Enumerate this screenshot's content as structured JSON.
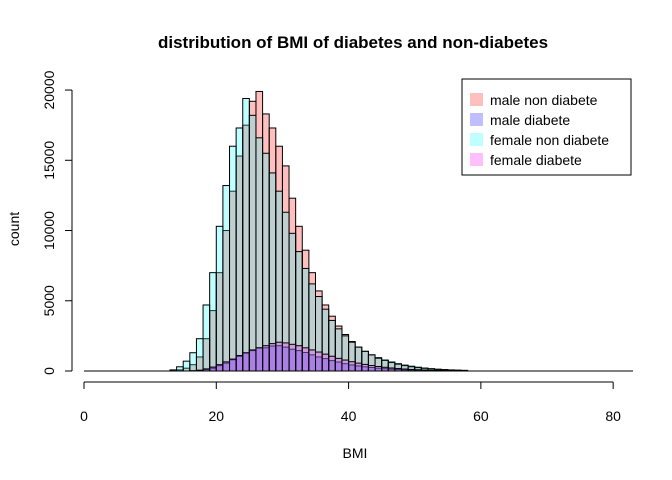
{
  "chart_data": {
    "type": "bar",
    "title": "distribution of BMI of diabetes and non-diabetes",
    "xlabel": "BMI",
    "ylabel": "count",
    "xlim": [
      0,
      83
    ],
    "ylim": [
      0,
      21000
    ],
    "x_ticks": [
      0,
      20,
      40,
      60,
      80
    ],
    "y_ticks": [
      0,
      5000,
      10000,
      15000,
      20000
    ],
    "bin_width": 1,
    "grid": false,
    "legend_position": "top-right",
    "series": [
      {
        "name": "male non diabete",
        "color": "#ff000040",
        "bins": [
          [
            13,
            20
          ],
          [
            14,
            80
          ],
          [
            15,
            200
          ],
          [
            16,
            450
          ],
          [
            17,
            1000
          ],
          [
            18,
            2300
          ],
          [
            19,
            4300
          ],
          [
            20,
            7000
          ],
          [
            21,
            10000
          ],
          [
            22,
            12800
          ],
          [
            23,
            15300
          ],
          [
            24,
            17500
          ],
          [
            25,
            19200
          ],
          [
            26,
            19900
          ],
          [
            27,
            18300
          ],
          [
            28,
            17300
          ],
          [
            29,
            16000
          ],
          [
            30,
            14600
          ],
          [
            31,
            12300
          ],
          [
            32,
            10300
          ],
          [
            33,
            8600
          ],
          [
            34,
            7000
          ],
          [
            35,
            5700
          ],
          [
            36,
            4700
          ],
          [
            37,
            3900
          ],
          [
            38,
            3200
          ],
          [
            39,
            2600
          ],
          [
            40,
            2100
          ],
          [
            41,
            1700
          ],
          [
            42,
            1400
          ],
          [
            43,
            1150
          ],
          [
            44,
            900
          ],
          [
            45,
            750
          ],
          [
            46,
            600
          ],
          [
            47,
            480
          ],
          [
            48,
            380
          ],
          [
            49,
            300
          ],
          [
            50,
            240
          ],
          [
            51,
            190
          ],
          [
            52,
            150
          ],
          [
            53,
            110
          ],
          [
            54,
            90
          ],
          [
            55,
            70
          ],
          [
            56,
            55
          ],
          [
            57,
            40
          ]
        ]
      },
      {
        "name": "male diabete",
        "color": "#0000ff40",
        "bins": [
          [
            16,
            10
          ],
          [
            17,
            40
          ],
          [
            18,
            100
          ],
          [
            19,
            200
          ],
          [
            20,
            380
          ],
          [
            21,
            560
          ],
          [
            22,
            800
          ],
          [
            23,
            1050
          ],
          [
            24,
            1280
          ],
          [
            25,
            1450
          ],
          [
            26,
            1650
          ],
          [
            27,
            1650
          ],
          [
            28,
            1780
          ],
          [
            29,
            1800
          ],
          [
            30,
            1700
          ],
          [
            31,
            1550
          ],
          [
            32,
            1450
          ],
          [
            33,
            1320
          ],
          [
            34,
            1150
          ],
          [
            35,
            1000
          ],
          [
            36,
            880
          ],
          [
            37,
            740
          ],
          [
            38,
            640
          ],
          [
            39,
            520
          ],
          [
            40,
            430
          ],
          [
            41,
            360
          ],
          [
            42,
            300
          ],
          [
            43,
            250
          ],
          [
            44,
            200
          ],
          [
            45,
            165
          ],
          [
            46,
            130
          ],
          [
            47,
            105
          ],
          [
            48,
            85
          ],
          [
            49,
            65
          ],
          [
            50,
            50
          ],
          [
            51,
            40
          ],
          [
            52,
            30
          ],
          [
            53,
            22
          ]
        ]
      },
      {
        "name": "female non diabete",
        "color": "#00ffff40",
        "bins": [
          [
            13,
            80
          ],
          [
            14,
            300
          ],
          [
            15,
            700
          ],
          [
            16,
            1300
          ],
          [
            17,
            2300
          ],
          [
            18,
            4700
          ],
          [
            19,
            7000
          ],
          [
            20,
            10300
          ],
          [
            21,
            13200
          ],
          [
            22,
            16000
          ],
          [
            23,
            17300
          ],
          [
            24,
            19400
          ],
          [
            25,
            18200
          ],
          [
            26,
            16600
          ],
          [
            27,
            15500
          ],
          [
            28,
            14100
          ],
          [
            29,
            12800
          ],
          [
            30,
            11300
          ],
          [
            31,
            9800
          ],
          [
            32,
            8500
          ],
          [
            33,
            7300
          ],
          [
            34,
            6200
          ],
          [
            35,
            5300
          ],
          [
            36,
            4400
          ],
          [
            37,
            3600
          ],
          [
            38,
            3000
          ],
          [
            39,
            2500
          ],
          [
            40,
            2050
          ],
          [
            41,
            1700
          ],
          [
            42,
            1400
          ],
          [
            43,
            1150
          ],
          [
            44,
            950
          ],
          [
            45,
            780
          ],
          [
            46,
            640
          ],
          [
            47,
            520
          ],
          [
            48,
            420
          ],
          [
            49,
            340
          ],
          [
            50,
            270
          ],
          [
            51,
            210
          ],
          [
            52,
            165
          ],
          [
            53,
            130
          ],
          [
            54,
            100
          ],
          [
            55,
            78
          ],
          [
            56,
            60
          ],
          [
            57,
            45
          ]
        ]
      },
      {
        "name": "female diabete",
        "color": "#ff00ff40",
        "bins": [
          [
            16,
            20
          ],
          [
            17,
            60
          ],
          [
            18,
            150
          ],
          [
            19,
            280
          ],
          [
            20,
            450
          ],
          [
            21,
            650
          ],
          [
            22,
            850
          ],
          [
            23,
            1100
          ],
          [
            24,
            1300
          ],
          [
            25,
            1500
          ],
          [
            26,
            1650
          ],
          [
            27,
            1800
          ],
          [
            28,
            1950
          ],
          [
            29,
            2050
          ],
          [
            30,
            2000
          ],
          [
            31,
            1900
          ],
          [
            32,
            1800
          ],
          [
            33,
            1650
          ],
          [
            34,
            1500
          ],
          [
            35,
            1350
          ],
          [
            36,
            1200
          ],
          [
            37,
            1050
          ],
          [
            38,
            900
          ],
          [
            39,
            780
          ],
          [
            40,
            660
          ],
          [
            41,
            560
          ],
          [
            42,
            470
          ],
          [
            43,
            390
          ],
          [
            44,
            320
          ],
          [
            45,
            265
          ],
          [
            46,
            215
          ],
          [
            47,
            175
          ],
          [
            48,
            140
          ],
          [
            49,
            110
          ],
          [
            50,
            90
          ],
          [
            51,
            70
          ],
          [
            52,
            55
          ],
          [
            53,
            42
          ],
          [
            54,
            32
          ],
          [
            55,
            25
          ]
        ]
      }
    ]
  }
}
